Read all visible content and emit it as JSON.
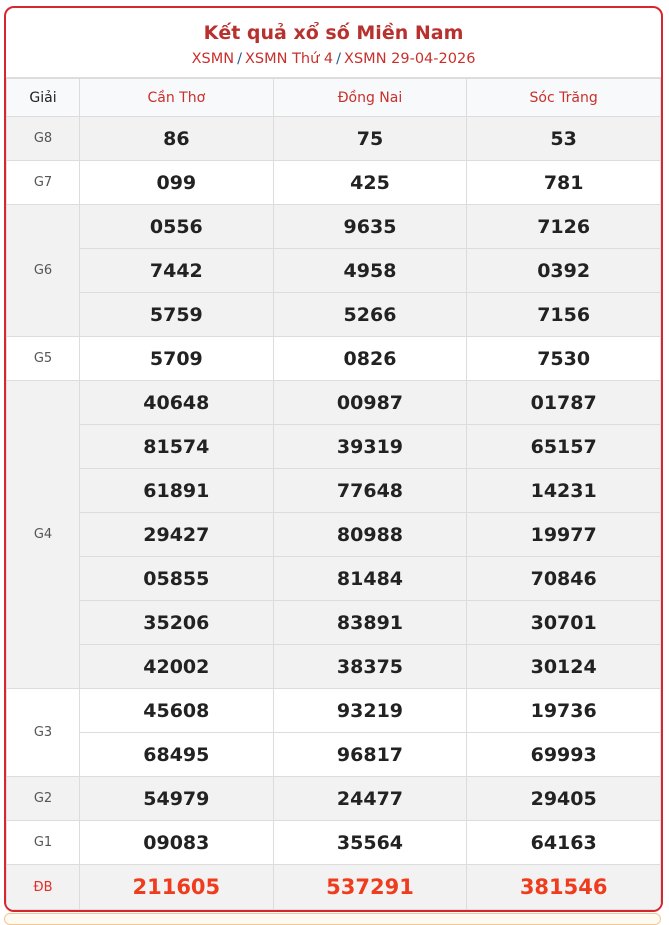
{
  "header": {
    "title": "Kết quả xổ số Miền Nam",
    "breadcrumb": [
      "XSMN",
      "XSMN Thứ 4",
      "XSMN 29-04-2026"
    ],
    "separator": "/"
  },
  "table": {
    "prize_header": "Giải",
    "provinces": [
      "Cần Thơ",
      "Đồng Nai",
      "Sóc Trăng"
    ],
    "prizes": [
      {
        "label": "G8",
        "rows": [
          [
            "86",
            "75",
            "53"
          ]
        ]
      },
      {
        "label": "G7",
        "rows": [
          [
            "099",
            "425",
            "781"
          ]
        ]
      },
      {
        "label": "G6",
        "rows": [
          [
            "0556",
            "9635",
            "7126"
          ],
          [
            "7442",
            "4958",
            "0392"
          ],
          [
            "5759",
            "5266",
            "7156"
          ]
        ]
      },
      {
        "label": "G5",
        "rows": [
          [
            "5709",
            "0826",
            "7530"
          ]
        ]
      },
      {
        "label": "G4",
        "rows": [
          [
            "40648",
            "00987",
            "01787"
          ],
          [
            "81574",
            "39319",
            "65157"
          ],
          [
            "61891",
            "77648",
            "14231"
          ],
          [
            "29427",
            "80988",
            "19977"
          ],
          [
            "05855",
            "81484",
            "70846"
          ],
          [
            "35206",
            "83891",
            "30701"
          ],
          [
            "42002",
            "38375",
            "30124"
          ]
        ]
      },
      {
        "label": "G3",
        "rows": [
          [
            "45608",
            "93219",
            "19736"
          ],
          [
            "68495",
            "96817",
            "69993"
          ]
        ]
      },
      {
        "label": "G2",
        "rows": [
          [
            "54979",
            "24477",
            "29405"
          ]
        ]
      },
      {
        "label": "G1",
        "rows": [
          [
            "09083",
            "35564",
            "64163"
          ]
        ]
      },
      {
        "label": "ĐB",
        "rows": [
          [
            "211605",
            "537291",
            "381546"
          ]
        ]
      }
    ]
  },
  "colors": {
    "accent": "#d7262d",
    "special": "#f03c1e",
    "row_alt": "#f2f2f2"
  }
}
